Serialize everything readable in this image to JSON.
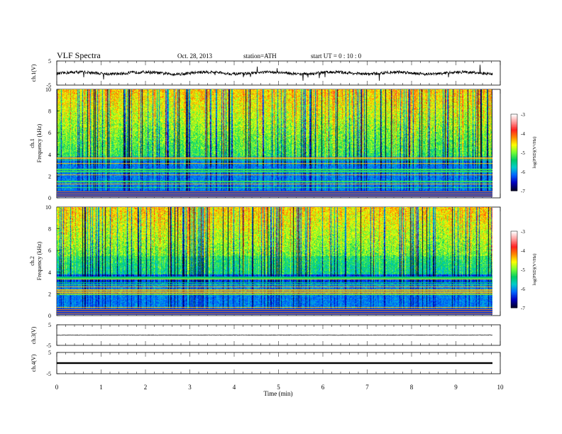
{
  "header": {
    "title": "VLF  Spectra",
    "date": "Oct. 28, 2013",
    "station": "station=ATH",
    "start": "start  UT =   0  : 10 : 0"
  },
  "colorbar": {
    "label": "log(PSD)(V²/Hz)",
    "ticks": [
      "-3",
      "-4",
      "-5",
      "-6",
      "-7"
    ],
    "colors": [
      "#ffffff",
      "#ff9999",
      "#ff2020",
      "#ff8800",
      "#ffff00",
      "#77ff33",
      "#00cc66",
      "#00cccc",
      "#0066ff",
      "#0000c0",
      "#000030"
    ]
  },
  "chart_data": [
    {
      "type": "line",
      "panel": "ch1-waveform",
      "ylabel": "ch.1(V)",
      "ylim": [
        -5,
        5
      ],
      "yticks": [
        "5",
        "-5"
      ],
      "baseline": 0,
      "xlim": [
        0,
        9.8
      ]
    },
    {
      "type": "heatmap",
      "panel": "ch1-spectrogram",
      "ylabel": "ch.1\nFrequency  (kHz)",
      "ylim": [
        0,
        10
      ],
      "yticks": [
        "0",
        "2",
        "4",
        "6",
        "8",
        "10"
      ],
      "xlim": [
        0,
        9.8
      ],
      "zlim": [
        -7,
        -3
      ],
      "zlabel": "log(PSD)(V²/Hz)"
    },
    {
      "type": "heatmap",
      "panel": "ch2-spectrogram",
      "ylabel": "ch.2\nFrequency  (kHz)",
      "ylim": [
        0,
        10
      ],
      "yticks": [
        "0",
        "2",
        "4",
        "6",
        "8",
        "10"
      ],
      "xlim": [
        0,
        9.8
      ],
      "zlim": [
        -7,
        -3
      ],
      "zlabel": "log(PSD)(V²/Hz)"
    },
    {
      "type": "line",
      "panel": "ch3-waveform",
      "ylabel": "ch.3(V)",
      "ylim": [
        -5,
        5
      ],
      "yticks": [
        "5",
        "-5"
      ],
      "baseline": 0,
      "xlim": [
        0,
        9.8
      ]
    },
    {
      "type": "line",
      "panel": "ch4-waveform",
      "ylabel": "ch.4(V)",
      "ylim": [
        -5,
        5
      ],
      "yticks": [
        "5",
        "-5"
      ],
      "baseline": 0,
      "xlim": [
        0,
        9.8
      ]
    }
  ],
  "xaxis": {
    "label": "Time  (min)",
    "range": [
      0,
      10
    ],
    "ticks": [
      "0",
      "1",
      "2",
      "3",
      "4",
      "5",
      "6",
      "7",
      "8",
      "9",
      "10"
    ]
  }
}
